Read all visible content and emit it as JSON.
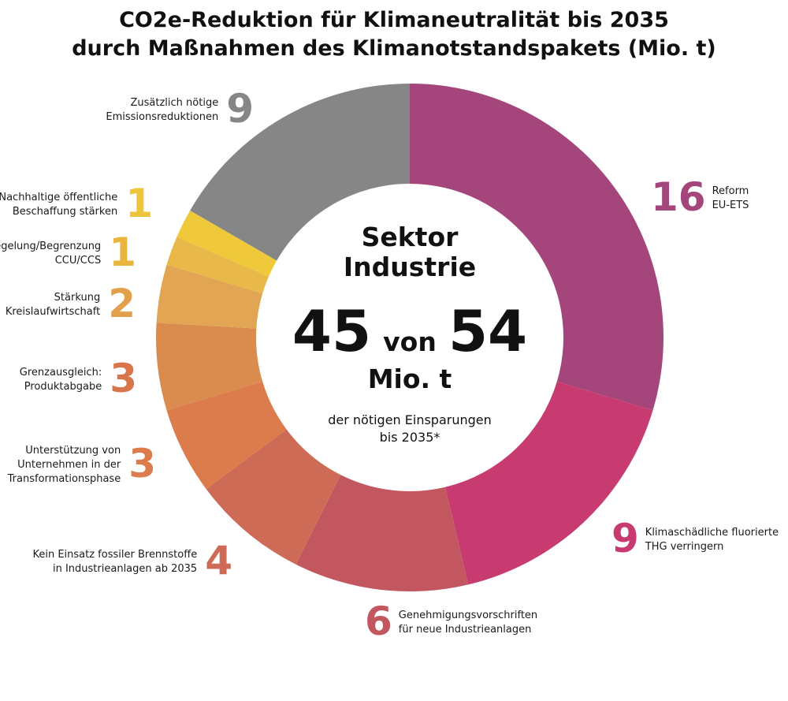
{
  "chart_data": {
    "type": "pie",
    "title_lines": [
      "CO2e-Reduktion für Klimaneutralität bis 2035",
      "durch Maßnahmen des Klimanotstandspakets (Mio. t)"
    ],
    "total": 54,
    "center": {
      "heading_lines": [
        "Sektor",
        "Industrie"
      ],
      "value_main": "45",
      "value_connector": "von",
      "value_total": "54",
      "unit": "Mio. t",
      "note_lines": [
        "der nötigen Einsparungen",
        "bis 2035*"
      ]
    },
    "segments": [
      {
        "label_lines": [
          "Reform",
          "EU-ETS"
        ],
        "value": 16,
        "color": "#a4457b",
        "value_color": "#a4457b"
      },
      {
        "label_lines": [
          "Klimaschädliche fluorierte",
          "THG verringern"
        ],
        "value": 9,
        "color": "#c73b70",
        "value_color": "#c73b70"
      },
      {
        "label_lines": [
          "Genehmigungsvorschriften",
          "für neue Industrieanlagen"
        ],
        "value": 6,
        "color": "#c35760",
        "value_color": "#c35760"
      },
      {
        "label_lines": [
          "Kein Einsatz fossiler Brennstoffe",
          "in Industrieanlagen ab 2035"
        ],
        "value": 4,
        "color": "#cd6b57",
        "value_color": "#cd6b57"
      },
      {
        "label_lines": [
          "Unterstützung von",
          "Unternehmen in der",
          "Transformationsphase"
        ],
        "value": 3,
        "color": "#dc7b4b",
        "value_color": "#dc7b4b"
      },
      {
        "label_lines": [
          "Grenzausgleich:",
          "Produktabgabe"
        ],
        "value": 3,
        "color": "#d98c4e",
        "value_color": "#d9754a"
      },
      {
        "label_lines": [
          "Stärkung",
          "Kreislaufwirtschaft"
        ],
        "value": 2,
        "color": "#e2a553",
        "value_color": "#e2a04c"
      },
      {
        "label_lines": [
          "Regelung/Begrenzung",
          "CCU/CCS"
        ],
        "value": 1,
        "color": "#e8b848",
        "value_color": "#e9b53f"
      },
      {
        "label_lines": [
          "Nachhaltige öffentliche",
          "Beschaffung stärken"
        ],
        "value": 1,
        "color": "#efc93a",
        "value_color": "#eec43b"
      },
      {
        "label_lines": [
          "Zusätzlich nötige",
          "Emissionsreduktionen"
        ],
        "value": 9,
        "color": "#868686",
        "value_color": "#868686"
      }
    ]
  }
}
